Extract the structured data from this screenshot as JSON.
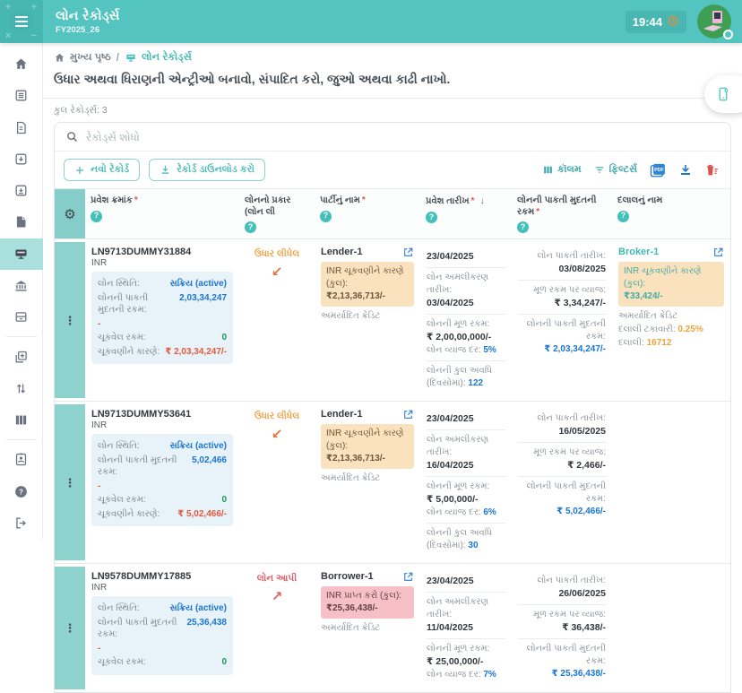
{
  "app": {
    "title": "લોન રેકોર્ડ્સ",
    "fiscal_year": "FY2025_26",
    "time": "19:44"
  },
  "colors": {
    "accent_teal": "#53c4c0",
    "link_blue": "#1a76d2",
    "warn_orange": "#eda64d",
    "danger_red": "#e0606b",
    "success_green": "#1f9254",
    "due_red": "#e4593d"
  },
  "sidebar": {
    "items": [
      {
        "icon": "home-icon",
        "active": false
      },
      {
        "icon": "ledger-icon",
        "active": false
      },
      {
        "icon": "document-icon",
        "active": false
      },
      {
        "icon": "inbox-download-icon",
        "active": false
      },
      {
        "icon": "archive-download-icon",
        "active": false
      },
      {
        "icon": "file-icon",
        "active": false
      },
      {
        "icon": "loan-records-icon",
        "active": true
      },
      {
        "icon": "bank-icon",
        "active": false
      },
      {
        "icon": "drawer-icon",
        "active": false
      },
      {
        "icon": "divider",
        "active": false
      },
      {
        "icon": "add-box-icon",
        "active": false
      },
      {
        "icon": "swap-vertical-icon",
        "active": false
      },
      {
        "icon": "table-columns-icon",
        "active": false
      },
      {
        "icon": "divider",
        "active": false
      },
      {
        "icon": "id-badge-icon",
        "active": false
      },
      {
        "icon": "help-icon",
        "active": false
      },
      {
        "icon": "logout-icon",
        "active": false
      }
    ]
  },
  "breadcrumb": {
    "home": "મુખ્ય પૃષ્ઠ",
    "separator": "/",
    "current": "લોન રેકોર્ડ્સ"
  },
  "page": {
    "description": "ઉધાર અથવા ધિરાણની એન્ટ્રીઓ બનાવો, સંપાદિત કરો, જુઓ અથવા કાઢી નાખો.",
    "total_records_label": "કુલ રેકોર્ડ્સ:",
    "total_records_count": "3",
    "search_placeholder": "રેકોર્ડ્સ શોધો"
  },
  "toolbar": {
    "new_record": "નવો રેકોર્ડ",
    "download_record": "રેકોર્ડ ડાઉનલોડ કરો",
    "columns": "કૉલમ",
    "filters": "ફિલ્ટર્સ"
  },
  "table": {
    "headers": [
      {
        "label": "પ્રવેશ ક્રમાંક",
        "required": true,
        "help": true
      },
      {
        "label": "લોનનો પ્રકાર (લોન લી",
        "required": false,
        "help": true
      },
      {
        "label": "પાર્ટીનું નામ",
        "required": true,
        "help": true
      },
      {
        "label": "પ્રવેશ તારીખ",
        "required": true,
        "help": true,
        "sorted": "desc"
      },
      {
        "label": "લોનની પાકતી મુદતની રકમ",
        "required": true,
        "help": true
      },
      {
        "label": "દલાલનું નામ",
        "required": false,
        "help": true
      }
    ],
    "field_labels": {
      "loan_status": "લોન સ્થિતિ:",
      "maturity_amount": "લોનની પાકતી મુદતની રકમ:",
      "paid_amount": "ચૂકવેલ રકમ:",
      "due_amount": "ચૂકવણીને કારણે:",
      "execution_date": "લોન અમલીકરણ તારીખ:",
      "principal": "લોનની મૂળ રકમ:",
      "interest_rate": "લોન વ્યાજ દર:",
      "duration_days": "લોનની કુલ અવધિ (દિવસોમાં):",
      "maturity_date": "લોન પાકતી તારીખ:",
      "interest_on_principal": "મૂળ રકમ પર વ્યાજ:",
      "brokerage_pct": "દલાલી ટકાવારી:",
      "brokerage": "દલાલી:"
    },
    "rows": [
      {
        "entry_number": "LN9713DUMMY31884",
        "currency": "INR",
        "status": {
          "loan_status": "સક્રિય (active)",
          "maturity_amount": "2,03,34,247",
          "maturity_amount_cont": "-",
          "paid_amount": "0",
          "due_amount": "₹ 2,03,34,247/-"
        },
        "loan_type": {
          "label": "ઉધાર લીધેલ",
          "direction": "in",
          "arrow": "↙"
        },
        "party": {
          "name": "Lender-1",
          "link": false,
          "box_style": "orange",
          "box_label": "INR ચૂકવણીને કારણે (કુલ):",
          "box_amount": "₹2,13,36,713/-",
          "credit_note": "અમર્યાદિત ક્રેડિટ"
        },
        "entry_date": "23/04/2025",
        "loan_details": {
          "execution_date": "03/04/2025",
          "principal": "₹ 2,00,00,000/-",
          "interest_rate": "5%",
          "duration_days": "122"
        },
        "maturity_details": {
          "maturity_date": "03/08/2025",
          "interest_on_principal": "₹ 3,34,247/-",
          "maturity_amount": "₹ 2,03,34,247/-"
        },
        "broker": {
          "name": "Broker-1",
          "box_label": "INR ચૂકવણીને કારણે (કુલ):",
          "box_amount": "₹33,424/-",
          "credit_note": "અમર્યાદિત ક્રેડિટ",
          "brokerage_pct": "0.25%",
          "brokerage": "16712"
        }
      },
      {
        "entry_number": "LN9713DUMMY53641",
        "currency": "INR",
        "status": {
          "loan_status": "સક્રિય (active)",
          "maturity_amount": "5,02,466",
          "maturity_amount_cont": "-",
          "paid_amount": "0",
          "due_amount": "₹ 5,02,466/-"
        },
        "loan_type": {
          "label": "ઉધાર લીધેલ",
          "direction": "in",
          "arrow": "↙"
        },
        "party": {
          "name": "Lender-1",
          "link": false,
          "box_style": "orange",
          "box_label": "INR ચૂકવણીને કારણે (કુલ):",
          "box_amount": "₹2,13,36,713/-",
          "credit_note": "અમર્યાદિત ક્રેડિટ"
        },
        "entry_date": "23/04/2025",
        "loan_details": {
          "execution_date": "16/04/2025",
          "principal": "₹ 5,00,000/-",
          "interest_rate": "6%",
          "duration_days": "30"
        },
        "maturity_details": {
          "maturity_date": "16/05/2025",
          "interest_on_principal": "₹ 2,466/-",
          "maturity_amount": "₹ 5,02,466/-"
        },
        "broker": null
      },
      {
        "entry_number": "LN9578DUMMY17885",
        "currency": "INR",
        "status": {
          "loan_status": "સક્રિય (active)",
          "maturity_amount": "25,36,438",
          "maturity_amount_cont": "-",
          "paid_amount": "0"
        },
        "loan_type": {
          "label": "લોન આપી",
          "direction": "out",
          "arrow": "↗"
        },
        "party": {
          "name": "Borrower-1",
          "link": false,
          "box_style": "pink",
          "box_label": "INR પ્રાપ્ત કરો (કુલ):",
          "box_amount": "₹25,36,438/-",
          "credit_note": "અમર્યાદિત ક્રેડિટ"
        },
        "entry_date": "23/04/2025",
        "loan_details": {
          "execution_date": "11/04/2025",
          "principal": "₹ 25,00,000/-",
          "interest_rate": "7%"
        },
        "maturity_details": {
          "maturity_date": "26/06/2025",
          "interest_on_principal": "₹ 36,438/-",
          "maturity_amount": "₹ 25,36,438/-"
        },
        "broker": null
      }
    ]
  }
}
